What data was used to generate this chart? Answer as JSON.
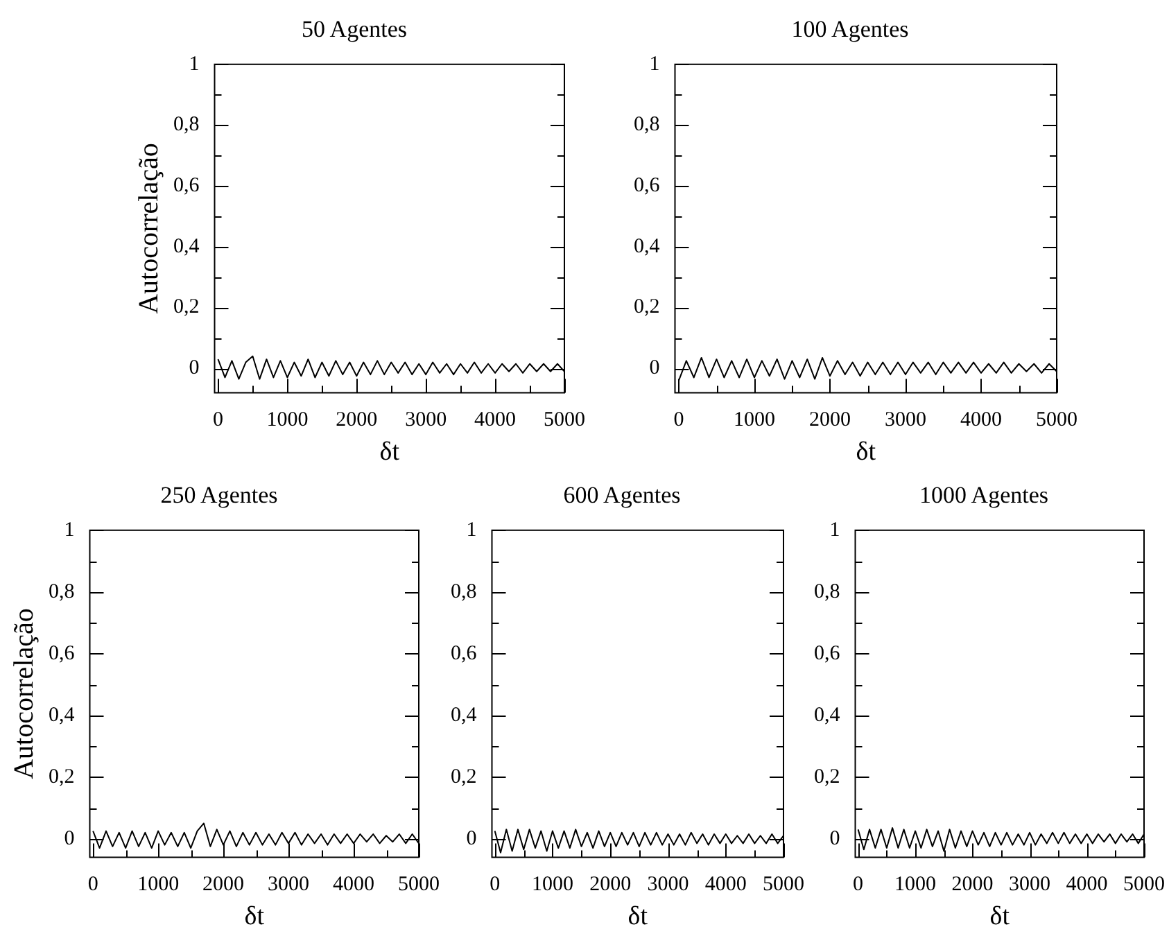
{
  "chart_data": [
    {
      "type": "line",
      "title": "50 Agentes",
      "xlabel": "δt",
      "ylabel": "Autocorrelação",
      "xlim": [
        -50,
        5000
      ],
      "ylim": [
        -0.08,
        1
      ],
      "xticks": [
        0,
        {
          "value": 500,
          "label": null
        },
        1000,
        {
          "value": 1500,
          "label": null
        },
        2000,
        {
          "value": 2500,
          "label": null
        },
        3000,
        {
          "value": 3500,
          "label": null
        },
        4000,
        {
          "value": 4500,
          "label": null
        },
        5000
      ],
      "yticks": [
        {
          "value": 0,
          "label": "0"
        },
        {
          "value": 0.1,
          "label": null
        },
        {
          "value": 0.2,
          "label": "0,2"
        },
        {
          "value": 0.3,
          "label": null
        },
        {
          "value": 0.4,
          "label": "0,4"
        },
        {
          "value": 0.5,
          "label": null
        },
        {
          "value": 0.6,
          "label": "0,6"
        },
        {
          "value": 0.7,
          "label": null
        },
        {
          "value": 0.8,
          "label": "0,8"
        },
        {
          "value": 0.9,
          "label": null
        },
        {
          "value": 1,
          "label": "1"
        }
      ],
      "x": [
        0,
        100,
        200,
        300,
        400,
        500,
        600,
        700,
        800,
        900,
        1000,
        1100,
        1200,
        1300,
        1400,
        1500,
        1600,
        1700,
        1800,
        1900,
        2000,
        2100,
        2200,
        2300,
        2400,
        2500,
        2600,
        2700,
        2800,
        2900,
        3000,
        3100,
        3200,
        3300,
        3400,
        3500,
        3600,
        3700,
        3800,
        3900,
        4000,
        4100,
        4200,
        4300,
        4400,
        4500,
        4600,
        4700,
        4800,
        4900,
        5000
      ],
      "series": [
        {
          "color": "#000000",
          "values": [
            0.03,
            -0.03,
            0.025,
            -0.035,
            0.02,
            0.04,
            -0.035,
            0.03,
            -0.03,
            0.025,
            -0.03,
            0.02,
            -0.025,
            0.03,
            -0.03,
            0.02,
            -0.025,
            0.025,
            -0.02,
            0.02,
            -0.025,
            0.02,
            -0.02,
            0.025,
            -0.02,
            0.02,
            -0.015,
            0.02,
            -0.02,
            0.015,
            -0.02,
            0.02,
            -0.015,
            0.015,
            -0.02,
            0.015,
            -0.015,
            0.02,
            -0.015,
            0.015,
            -0.015,
            0.015,
            -0.01,
            0.015,
            -0.015,
            0.015,
            -0.01,
            0.015,
            -0.01,
            0.015,
            -0.01
          ]
        }
      ],
      "grid": false,
      "legend": false,
      "marker": "none",
      "line_style": "solid"
    },
    {
      "type": "line",
      "title": "100 Agentes",
      "xlabel": "δt",
      "xlim": [
        -50,
        5000
      ],
      "ylim": [
        -0.08,
        1
      ],
      "xticks": [
        0,
        {
          "value": 500,
          "label": null
        },
        1000,
        {
          "value": 1500,
          "label": null
        },
        2000,
        {
          "value": 2500,
          "label": null
        },
        3000,
        {
          "value": 3500,
          "label": null
        },
        4000,
        {
          "value": 4500,
          "label": null
        },
        5000
      ],
      "yticks": [
        {
          "value": 0,
          "label": "0"
        },
        {
          "value": 0.1,
          "label": null
        },
        {
          "value": 0.2,
          "label": "0,2"
        },
        {
          "value": 0.3,
          "label": null
        },
        {
          "value": 0.4,
          "label": "0,4"
        },
        {
          "value": 0.5,
          "label": null
        },
        {
          "value": 0.6,
          "label": "0,6"
        },
        {
          "value": 0.7,
          "label": null
        },
        {
          "value": 0.8,
          "label": "0,8"
        },
        {
          "value": 0.9,
          "label": null
        },
        {
          "value": 1,
          "label": "1"
        }
      ],
      "x": [
        0,
        100,
        200,
        300,
        400,
        500,
        600,
        700,
        800,
        900,
        1000,
        1100,
        1200,
        1300,
        1400,
        1500,
        1600,
        1700,
        1800,
        1900,
        2000,
        2100,
        2200,
        2300,
        2400,
        2500,
        2600,
        2700,
        2800,
        2900,
        3000,
        3100,
        3200,
        3300,
        3400,
        3500,
        3600,
        3700,
        3800,
        3900,
        4000,
        4100,
        4200,
        4300,
        4400,
        4500,
        4600,
        4700,
        4800,
        4900,
        5000
      ],
      "series": [
        {
          "color": "#000000",
          "values": [
            -0.04,
            0.025,
            -0.03,
            0.035,
            -0.03,
            0.03,
            -0.03,
            0.025,
            -0.03,
            0.03,
            -0.03,
            0.025,
            -0.025,
            0.03,
            -0.035,
            0.025,
            -0.03,
            0.03,
            -0.035,
            0.035,
            -0.025,
            0.025,
            -0.02,
            0.02,
            -0.025,
            0.02,
            -0.02,
            0.02,
            -0.02,
            0.02,
            -0.02,
            0.02,
            -0.015,
            0.02,
            -0.02,
            0.02,
            -0.015,
            0.02,
            -0.015,
            0.02,
            -0.015,
            0.015,
            -0.015,
            0.02,
            -0.015,
            0.015,
            -0.01,
            0.015,
            -0.015,
            0.015,
            -0.01
          ]
        }
      ],
      "grid": false,
      "legend": false,
      "marker": "none",
      "line_style": "solid"
    },
    {
      "type": "line",
      "title": "250 Agentes",
      "xlabel": "δt",
      "ylabel": "Autocorrelação",
      "xlim": [
        -50,
        5000
      ],
      "ylim": [
        -0.06,
        1
      ],
      "xticks": [
        0,
        {
          "value": 500,
          "label": null
        },
        1000,
        {
          "value": 1500,
          "label": null
        },
        2000,
        {
          "value": 2500,
          "label": null
        },
        3000,
        {
          "value": 3500,
          "label": null
        },
        4000,
        {
          "value": 4500,
          "label": null
        },
        5000
      ],
      "yticks": [
        {
          "value": 0,
          "label": "0"
        },
        {
          "value": 0.1,
          "label": null
        },
        {
          "value": 0.2,
          "label": "0,2"
        },
        {
          "value": 0.3,
          "label": null
        },
        {
          "value": 0.4,
          "label": "0,4"
        },
        {
          "value": 0.5,
          "label": null
        },
        {
          "value": 0.6,
          "label": "0,6"
        },
        {
          "value": 0.7,
          "label": null
        },
        {
          "value": 0.8,
          "label": "0,8"
        },
        {
          "value": 0.9,
          "label": null
        },
        {
          "value": 1,
          "label": "1"
        }
      ],
      "x": [
        0,
        100,
        200,
        300,
        400,
        500,
        600,
        700,
        800,
        900,
        1000,
        1100,
        1200,
        1300,
        1400,
        1500,
        1600,
        1700,
        1800,
        1900,
        2000,
        2100,
        2200,
        2300,
        2400,
        2500,
        2600,
        2700,
        2800,
        2900,
        3000,
        3100,
        3200,
        3300,
        3400,
        3500,
        3600,
        3700,
        3800,
        3900,
        4000,
        4100,
        4200,
        4300,
        4400,
        4500,
        4600,
        4700,
        4800,
        4900,
        5000
      ],
      "series": [
        {
          "color": "#000000",
          "values": [
            0.025,
            -0.03,
            0.025,
            -0.025,
            0.02,
            -0.03,
            0.025,
            -0.025,
            0.02,
            -0.03,
            0.025,
            -0.02,
            0.02,
            -0.025,
            0.02,
            -0.03,
            0.025,
            0.05,
            -0.025,
            0.03,
            -0.02,
            0.025,
            -0.025,
            0.02,
            -0.02,
            0.02,
            -0.02,
            0.015,
            -0.02,
            0.02,
            -0.015,
            0.02,
            -0.02,
            0.015,
            -0.015,
            0.015,
            -0.02,
            0.015,
            -0.015,
            0.015,
            -0.015,
            0.015,
            -0.01,
            0.015,
            -0.015,
            0.01,
            -0.01,
            0.015,
            -0.015,
            0.015,
            -0.015
          ]
        }
      ],
      "grid": false,
      "legend": false,
      "marker": "none",
      "line_style": "solid"
    },
    {
      "type": "line",
      "title": "600 Agentes",
      "xlabel": "δt",
      "xlim": [
        -50,
        5000
      ],
      "ylim": [
        -0.06,
        1
      ],
      "xticks": [
        0,
        {
          "value": 500,
          "label": null
        },
        1000,
        {
          "value": 1500,
          "label": null
        },
        2000,
        {
          "value": 2500,
          "label": null
        },
        3000,
        {
          "value": 3500,
          "label": null
        },
        4000,
        {
          "value": 4500,
          "label": null
        },
        5000
      ],
      "yticks": [
        {
          "value": 0,
          "label": "0"
        },
        {
          "value": 0.1,
          "label": null
        },
        {
          "value": 0.2,
          "label": "0,2"
        },
        {
          "value": 0.3,
          "label": null
        },
        {
          "value": 0.4,
          "label": "0,4"
        },
        {
          "value": 0.5,
          "label": null
        },
        {
          "value": 0.6,
          "label": "0,6"
        },
        {
          "value": 0.7,
          "label": null
        },
        {
          "value": 0.8,
          "label": "0,8"
        },
        {
          "value": 0.9,
          "label": null
        },
        {
          "value": 1,
          "label": "1"
        }
      ],
      "x": [
        0,
        100,
        200,
        300,
        400,
        500,
        600,
        700,
        800,
        900,
        1000,
        1100,
        1200,
        1300,
        1400,
        1500,
        1600,
        1700,
        1800,
        1900,
        2000,
        2100,
        2200,
        2300,
        2400,
        2500,
        2600,
        2700,
        2800,
        2900,
        3000,
        3100,
        3200,
        3300,
        3400,
        3500,
        3600,
        3700,
        3800,
        3900,
        4000,
        4100,
        4200,
        4300,
        4400,
        4500,
        4600,
        4700,
        4800,
        4900,
        5000
      ],
      "series": [
        {
          "color": "#000000",
          "values": [
            0.025,
            -0.045,
            0.03,
            -0.04,
            0.03,
            -0.035,
            0.03,
            -0.03,
            0.025,
            -0.04,
            0.025,
            -0.03,
            0.025,
            -0.03,
            0.03,
            -0.025,
            0.02,
            -0.03,
            0.025,
            -0.025,
            0.02,
            -0.025,
            0.02,
            -0.02,
            0.02,
            -0.025,
            0.02,
            -0.02,
            0.02,
            -0.02,
            0.015,
            -0.02,
            0.015,
            -0.02,
            0.02,
            -0.015,
            0.015,
            -0.02,
            0.015,
            -0.015,
            0.015,
            -0.015,
            0.01,
            -0.015,
            0.015,
            -0.015,
            0.01,
            -0.015,
            0.015,
            -0.015,
            0.01
          ]
        }
      ],
      "grid": false,
      "legend": false,
      "marker": "none",
      "line_style": "solid"
    },
    {
      "type": "line",
      "title": "1000 Agentes",
      "xlabel": "δt",
      "xlim": [
        -50,
        5000
      ],
      "ylim": [
        -0.06,
        1
      ],
      "xticks": [
        0,
        {
          "value": 500,
          "label": null
        },
        1000,
        {
          "value": 1500,
          "label": null
        },
        2000,
        {
          "value": 2500,
          "label": null
        },
        3000,
        {
          "value": 3500,
          "label": null
        },
        4000,
        {
          "value": 4500,
          "label": null
        },
        5000
      ],
      "yticks": [
        {
          "value": 0,
          "label": "0"
        },
        {
          "value": 0.1,
          "label": null
        },
        {
          "value": 0.2,
          "label": "0,2"
        },
        {
          "value": 0.3,
          "label": null
        },
        {
          "value": 0.4,
          "label": "0,4"
        },
        {
          "value": 0.5,
          "label": null
        },
        {
          "value": 0.6,
          "label": "0,6"
        },
        {
          "value": 0.7,
          "label": null
        },
        {
          "value": 0.8,
          "label": "0,8"
        },
        {
          "value": 0.9,
          "label": null
        },
        {
          "value": 1,
          "label": "1"
        }
      ],
      "x": [
        0,
        100,
        200,
        300,
        400,
        500,
        600,
        700,
        800,
        900,
        1000,
        1100,
        1200,
        1300,
        1400,
        1500,
        1600,
        1700,
        1800,
        1900,
        2000,
        2100,
        2200,
        2300,
        2400,
        2500,
        2600,
        2700,
        2800,
        2900,
        3000,
        3100,
        3200,
        3300,
        3400,
        3500,
        3600,
        3700,
        3800,
        3900,
        4000,
        4100,
        4200,
        4300,
        4400,
        4500,
        4600,
        4700,
        4800,
        4900,
        5000
      ],
      "series": [
        {
          "color": "#000000",
          "values": [
            0.03,
            -0.035,
            0.03,
            -0.03,
            0.03,
            -0.03,
            0.035,
            -0.03,
            0.03,
            -0.03,
            0.025,
            -0.03,
            0.03,
            -0.025,
            0.025,
            -0.04,
            0.03,
            -0.03,
            0.025,
            -0.025,
            0.025,
            -0.02,
            0.02,
            -0.025,
            0.02,
            -0.02,
            0.02,
            -0.02,
            0.015,
            -0.02,
            0.02,
            -0.02,
            0.015,
            -0.015,
            0.02,
            -0.015,
            0.02,
            -0.015,
            0.015,
            -0.015,
            0.015,
            -0.015,
            0.015,
            -0.01,
            0.015,
            -0.015,
            0.015,
            -0.01,
            0.015,
            -0.015,
            0.015
          ]
        }
      ],
      "grid": false,
      "legend": false,
      "marker": "none",
      "line_style": "solid"
    }
  ]
}
